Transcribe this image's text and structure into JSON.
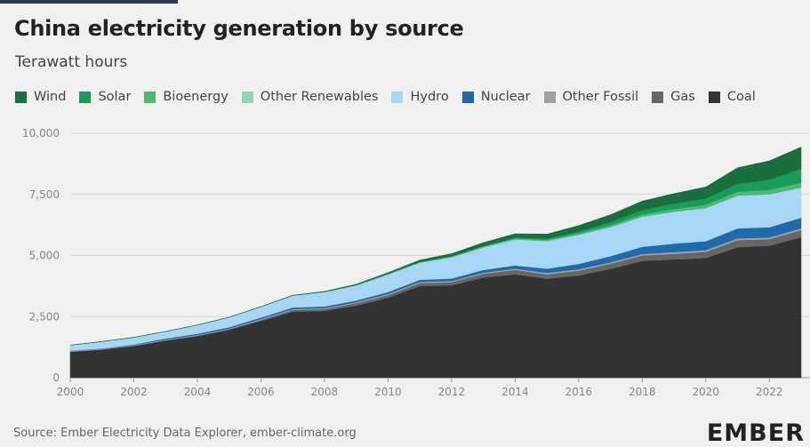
{
  "header": {
    "title": "China electricity generation by source",
    "subtitle": "Terawatt hours"
  },
  "footer": {
    "source": "Source: Ember Electricity Data Explorer, ember-climate.org",
    "logo_text": "EMBER"
  },
  "colors": {
    "background": "#f0f0f0",
    "gridline": "#d6d6d6",
    "axis_text": "#888888",
    "logo": "#222222",
    "logo_accent": "#22a06b"
  },
  "chart_data": {
    "type": "area",
    "stacked": true,
    "title": "China electricity generation by source",
    "ylabel": "Terawatt hours",
    "xlabel": "",
    "x": [
      2000,
      2001,
      2002,
      2003,
      2004,
      2005,
      2006,
      2007,
      2008,
      2009,
      2010,
      2011,
      2012,
      2013,
      2014,
      2015,
      2016,
      2017,
      2018,
      2019,
      2020,
      2021,
      2022,
      2023
    ],
    "xlim": [
      2000,
      2023
    ],
    "ylim": [
      0,
      10000
    ],
    "x_ticks": [
      2000,
      2002,
      2004,
      2006,
      2008,
      2010,
      2012,
      2014,
      2016,
      2018,
      2020,
      2022
    ],
    "y_ticks": [
      0,
      2500,
      5000,
      7500,
      10000
    ],
    "y_tick_labels": [
      "0",
      "2,500",
      "5,000",
      "7,500",
      "10,000"
    ],
    "grid": true,
    "legend_position": "top-left",
    "series": [
      {
        "name": "Coal",
        "color": "#333333",
        "values": [
          1060,
          1150,
          1300,
          1520,
          1700,
          1960,
          2320,
          2700,
          2730,
          2950,
          3270,
          3750,
          3780,
          4100,
          4230,
          4050,
          4180,
          4450,
          4780,
          4840,
          4900,
          5340,
          5400,
          5750
        ]
      },
      {
        "name": "Gas",
        "color": "#666666",
        "values": [
          5,
          5,
          5,
          10,
          20,
          25,
          45,
          70,
          80,
          100,
          110,
          120,
          130,
          150,
          180,
          180,
          200,
          215,
          220,
          230,
          250,
          290,
          270,
          290
        ]
      },
      {
        "name": "Other Fossil",
        "color": "#a0a0a0",
        "values": [
          25,
          25,
          30,
          30,
          30,
          30,
          40,
          40,
          40,
          40,
          50,
          50,
          50,
          50,
          50,
          60,
          60,
          60,
          60,
          70,
          70,
          70,
          70,
          70
        ]
      },
      {
        "name": "Nuclear",
        "color": "#1f6aab",
        "values": [
          17,
          18,
          25,
          44,
          50,
          53,
          55,
          62,
          68,
          70,
          74,
          87,
          97,
          112,
          133,
          171,
          213,
          248,
          295,
          348,
          366,
          408,
          418,
          435
        ]
      },
      {
        "name": "Hydro",
        "color": "#a9d6f5",
        "values": [
          222,
          278,
          288,
          283,
          353,
          397,
          436,
          485,
          585,
          616,
          722,
          698,
          872,
          920,
          1064,
          1130,
          1193,
          1190,
          1232,
          1303,
          1355,
          1340,
          1352,
          1227
        ]
      },
      {
        "name": "Other Renewables",
        "color": "#93d4b4",
        "values": [
          0,
          0,
          0,
          0,
          0,
          0,
          0,
          0,
          0,
          0,
          0,
          0,
          0,
          0,
          0,
          0,
          0,
          0,
          0,
          0,
          0,
          0,
          0,
          0
        ]
      },
      {
        "name": "Bioenergy",
        "color": "#4aba74",
        "values": [
          2,
          3,
          3,
          4,
          5,
          6,
          8,
          10,
          14,
          20,
          25,
          32,
          40,
          45,
          50,
          55,
          65,
          80,
          94,
          112,
          136,
          163,
          182,
          197
        ]
      },
      {
        "name": "Solar",
        "color": "#1a9b5a",
        "values": [
          0,
          0,
          0,
          0,
          0,
          0,
          0,
          0,
          0,
          0,
          1,
          3,
          4,
          8,
          29,
          45,
          75,
          131,
          178,
          224,
          261,
          327,
          418,
          584
        ]
      },
      {
        "name": "Wind",
        "color": "#1b6f3e",
        "values": [
          0,
          0,
          0,
          0,
          0,
          2,
          4,
          6,
          13,
          28,
          45,
          74,
          103,
          142,
          156,
          186,
          241,
          295,
          366,
          406,
          467,
          656,
          762,
          886
        ]
      }
    ]
  },
  "legend": [
    {
      "label": "Wind",
      "color": "#1b6f3e"
    },
    {
      "label": "Solar",
      "color": "#1a9b5a"
    },
    {
      "label": "Bioenergy",
      "color": "#4aba74"
    },
    {
      "label": "Other Renewables",
      "color": "#93d4b4"
    },
    {
      "label": "Hydro",
      "color": "#a9d6f5"
    },
    {
      "label": "Nuclear",
      "color": "#1f6aab"
    },
    {
      "label": "Other Fossil",
      "color": "#a0a0a0"
    },
    {
      "label": "Gas",
      "color": "#666666"
    },
    {
      "label": "Coal",
      "color": "#333333"
    }
  ]
}
